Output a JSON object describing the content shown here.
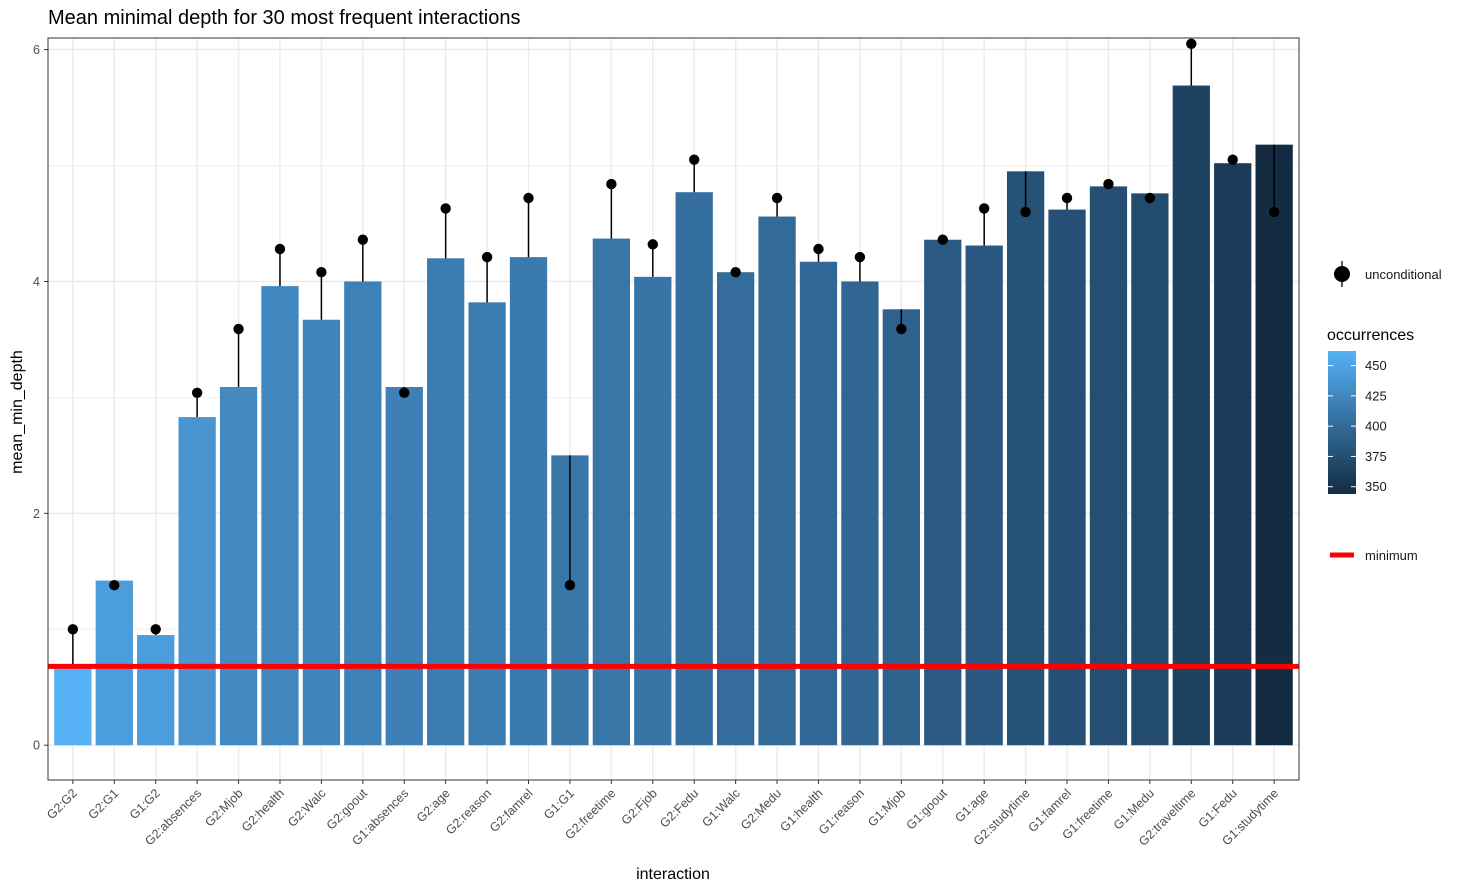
{
  "chart_data": {
    "type": "bar",
    "title": "Mean minimal depth for 30 most frequent interactions",
    "xlabel": "interaction",
    "ylabel": "mean_min_depth",
    "ylim": [
      -0.3,
      6.1
    ],
    "yticks": [
      0,
      2,
      4,
      6
    ],
    "grid": true,
    "categories": [
      "G2:G2",
      "G2:G1",
      "G1:G2",
      "G2:absences",
      "G2:Mjob",
      "G2:health",
      "G2:Walc",
      "G2:goout",
      "G1:absences",
      "G2:age",
      "G2:reason",
      "G2:famrel",
      "G1:G1",
      "G2:freetime",
      "G2:Fjob",
      "G2:Fedu",
      "G1:Walc",
      "G2:Medu",
      "G1:health",
      "G1:reason",
      "G1:Mjob",
      "G1:goout",
      "G1:age",
      "G2:studytime",
      "G1:famrel",
      "G1:freetime",
      "G1:Medu",
      "G2:traveltime",
      "G1:Fedu",
      "G1:studytime"
    ],
    "series": [
      {
        "name": "mean_min_depth",
        "values": [
          0.68,
          1.42,
          0.95,
          2.83,
          3.09,
          3.96,
          3.67,
          4.0,
          3.09,
          4.2,
          3.82,
          4.21,
          2.5,
          4.37,
          4.04,
          4.77,
          4.08,
          4.56,
          4.17,
          4.0,
          3.76,
          4.36,
          4.31,
          4.95,
          4.62,
          4.82,
          4.76,
          5.69,
          5.02,
          5.18
        ]
      },
      {
        "name": "unconditional",
        "values": [
          1.0,
          1.38,
          1.0,
          3.04,
          3.59,
          4.28,
          4.08,
          4.36,
          3.04,
          4.63,
          4.21,
          4.72,
          1.38,
          4.84,
          4.32,
          5.05,
          4.08,
          4.72,
          4.28,
          4.21,
          3.59,
          4.36,
          4.63,
          4.6,
          4.72,
          4.84,
          4.72,
          6.05,
          5.05,
          4.6
        ]
      },
      {
        "name": "occurrences",
        "values": [
          462,
          444,
          444,
          437,
          428,
          426,
          422,
          420,
          419,
          416,
          416,
          414,
          411,
          410,
          409,
          404,
          402,
          400,
          398,
          396,
          393,
          385,
          384,
          378,
          376,
          375,
          372,
          364,
          358,
          344
        ]
      }
    ],
    "minimum": 0.68,
    "color_scale": {
      "title": "occurrences",
      "low_color": "#132B43",
      "high_color": "#56B1F7",
      "domain": [
        344,
        462
      ],
      "ticks": [
        350,
        375,
        400,
        425,
        450
      ]
    },
    "legend": {
      "placement": "right",
      "unconditional_label": "unconditional",
      "minimum_label": "minimum",
      "minimum_color": "#ff0000",
      "point_color": "#000000"
    }
  }
}
